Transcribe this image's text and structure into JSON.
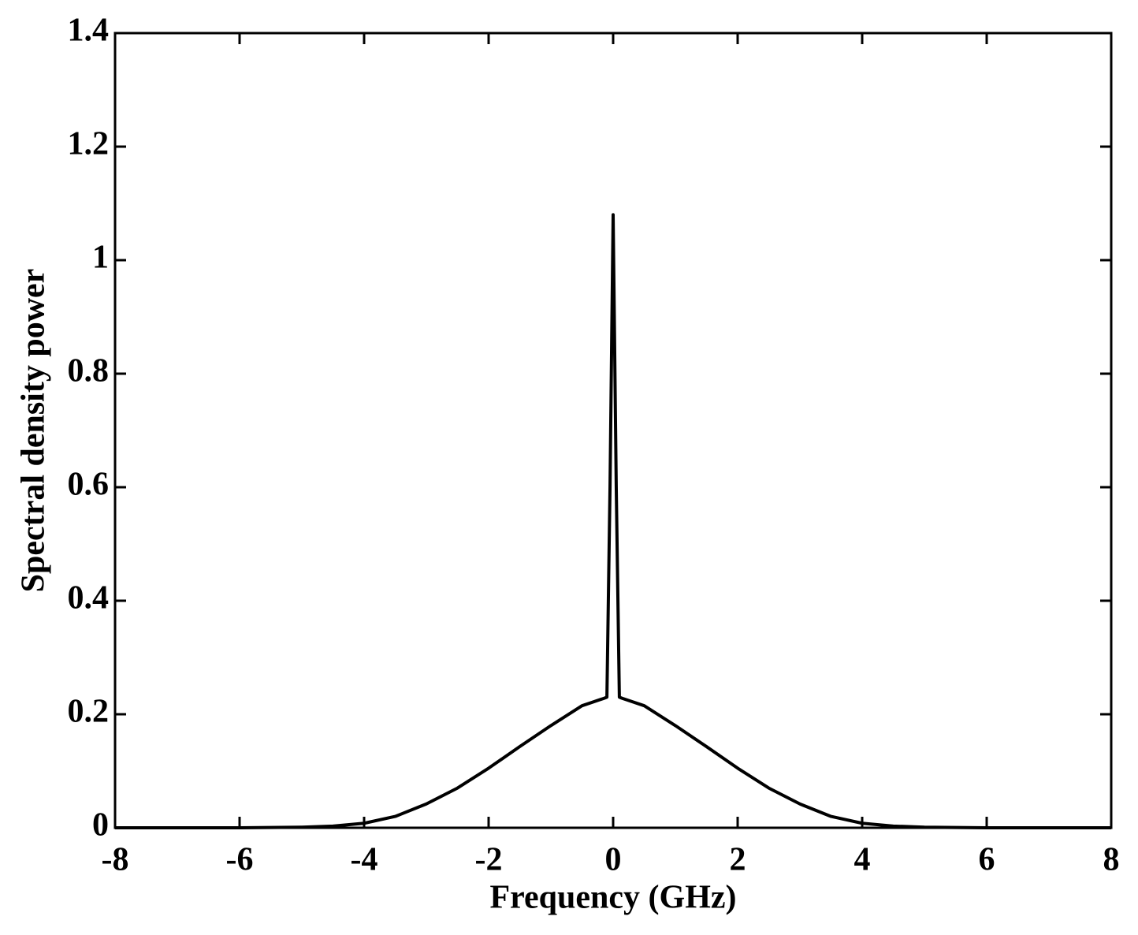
{
  "chart_data": {
    "type": "line",
    "x_label": "Frequency (GHz)",
    "y_label": "Spectral density power",
    "x": [
      -8,
      -6,
      -5,
      -4.5,
      -4,
      -3.5,
      -3,
      -2.5,
      -2,
      -1.5,
      -1,
      -0.5,
      -0.15,
      -0.1,
      -0.05,
      0,
      0.05,
      0.1,
      0.15,
      0.5,
      1,
      1.5,
      2,
      2.5,
      3,
      3.5,
      4,
      4.5,
      5,
      6,
      8
    ],
    "series": [
      {
        "color": "#000000",
        "values": [
          0,
          0,
          0.001,
          0.003,
          0.008,
          0.02,
          0.042,
          0.07,
          0.105,
          0.143,
          0.18,
          0.215,
          0.228,
          0.23,
          0.6,
          1.08,
          0.6,
          0.23,
          0.228,
          0.215,
          0.18,
          0.143,
          0.105,
          0.07,
          0.042,
          0.02,
          0.008,
          0.003,
          0.001,
          0,
          0
        ]
      }
    ],
    "xlim": [
      -8,
      8
    ],
    "xticks": [
      -8,
      -6,
      -4,
      -2,
      0,
      2,
      4,
      6,
      8
    ],
    "ylim": [
      0,
      1.4
    ],
    "yticks": [
      0,
      0.2,
      0.4,
      0.6,
      0.8,
      1,
      1.2,
      1.4
    ],
    "grid": false
  }
}
